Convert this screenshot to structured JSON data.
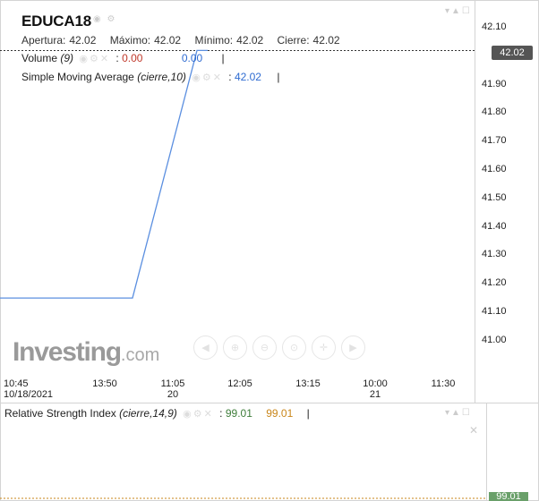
{
  "header": {
    "symbol": "EDUCA18",
    "ohlc": {
      "open_label": "Apertura:",
      "open": "42.02",
      "high_label": "Máximo:",
      "high": "42.02",
      "low_label": "Mínimo:",
      "low": "42.02",
      "close_label": "Cierre:",
      "close": "42.02"
    }
  },
  "studies": {
    "volume": {
      "name": "Volume",
      "param": "(9)",
      "value1": "0.00",
      "value2": "0.00"
    },
    "sma": {
      "name": "Simple Moving Average",
      "param": "(cierre,10)",
      "sep": ":",
      "value": "42.02"
    },
    "rsi": {
      "name": "Relative Strength Index",
      "param": "(cierre,14,9)",
      "sep": ":",
      "value1": "99.01",
      "value2": "99.01",
      "tag": "99.01"
    }
  },
  "price_tag": "42.02",
  "watermark": {
    "brand": "Investing",
    "suffix": ".com"
  },
  "colors": {
    "line": "#5b8fe0",
    "price_tag_bg": "#555555",
    "rsi_tag_bg": "#6aa06a",
    "study_red": "#c0392b",
    "study_blue": "#2e6bd1"
  },
  "chart_data": {
    "type": "line",
    "title": "",
    "y_ticks": [
      "42.10",
      "42.02",
      "41.90",
      "41.80",
      "41.70",
      "41.60",
      "41.50",
      "41.40",
      "41.30",
      "41.20",
      "41.10",
      "41.00"
    ],
    "x_ticks": [
      {
        "label": "10:45",
        "sub": "10/18/2021"
      },
      {
        "label": "13:50",
        "sub": ""
      },
      {
        "label": "11:05",
        "sub": "20"
      },
      {
        "label": "12:05",
        "sub": ""
      },
      {
        "label": "13:15",
        "sub": ""
      },
      {
        "label": "10:00",
        "sub": "21"
      },
      {
        "label": "11:30",
        "sub": ""
      }
    ],
    "series": [
      {
        "points": [
          {
            "x": "10:45 10/18",
            "y": 41.15
          },
          {
            "x": "13:50 10/19",
            "y": 41.15
          },
          {
            "x": "11:05 10/20",
            "y": 42.02
          },
          {
            "x": "11:40 10/20",
            "y": 42.02
          }
        ]
      }
    ],
    "ylim": [
      40.95,
      42.12
    ],
    "reference_line": 42.02,
    "grid": false
  }
}
